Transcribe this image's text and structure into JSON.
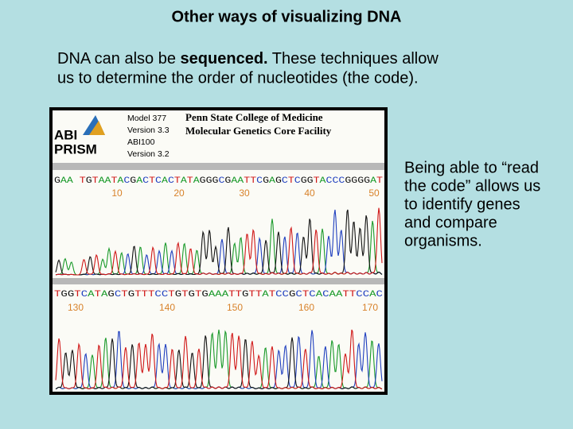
{
  "title": "Other ways of visualizing DNA",
  "intro": {
    "line1": [
      "DNA can also be",
      "sequenced.",
      "These techniques allow"
    ],
    "line2": "us to determine the order of nucleotides (the code)."
  },
  "figure": {
    "logo": [
      "ABI",
      "PRISM"
    ],
    "instrument": [
      "Model 377",
      "Version 3.3",
      "ABI100",
      "Version 3.2"
    ],
    "facility": [
      "Penn State College of Medicine",
      "Molecular Genetics Core Facility"
    ],
    "panels": [
      {
        "sequence": "GAA TGTAATACGACTCACTATAGGGCGAATTCGAGCTCGGTACCCGGGGAT",
        "positions": [
          10,
          20,
          30,
          40,
          50
        ]
      },
      {
        "sequence": "TGGTCATAGCTGTTTCCTGTGTGAAATTGTTATCCGCTCACAATTCCAC",
        "positions": [
          130,
          140,
          150,
          160,
          170
        ]
      }
    ]
  },
  "side_text": [
    "Being able to “read",
    "the code” allows us",
    "to identify genes",
    "and compare",
    "organisms."
  ]
}
